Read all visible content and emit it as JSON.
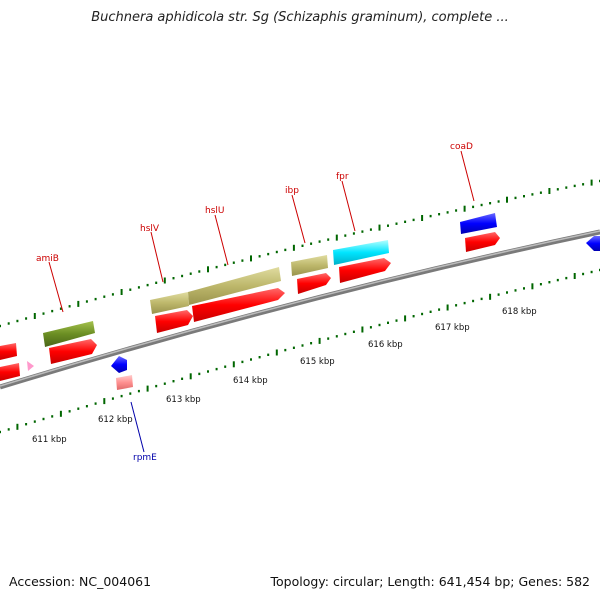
{
  "title": "Buchnera aphidicola str. Sg (Schizaphis graminum), complete ...",
  "accession_text": "Accession: NC_004061",
  "genome_stats_text": "Topology: circular; Length: 641,454 bp; Genes: 582",
  "colors": {
    "label": "#cc0000",
    "label_blue": "#0000aa",
    "tick": "#006600",
    "backbone": "#888888",
    "cds_red": "#ff0000",
    "cds_olive": "#6b8e23",
    "cds_khaki": "#bdb76b",
    "cds_cyan": "#00e5ff",
    "cds_blue": "#0000ff",
    "cds_pink": "#ff9090"
  },
  "kbp_labels": [
    "611 kbp",
    "612 kbp",
    "613 kbp",
    "614 kbp",
    "615 kbp",
    "616 kbp",
    "617 kbp",
    "618 kbp"
  ],
  "gene_labels": [
    {
      "text": "amiB",
      "color": "label"
    },
    {
      "text": "hslV",
      "color": "label"
    },
    {
      "text": "hslU",
      "color": "label"
    },
    {
      "text": "ibp",
      "color": "label"
    },
    {
      "text": "fpr",
      "color": "label"
    },
    {
      "text": "coaD",
      "color": "label"
    },
    {
      "text": "rpmE",
      "color": "label_blue"
    }
  ]
}
